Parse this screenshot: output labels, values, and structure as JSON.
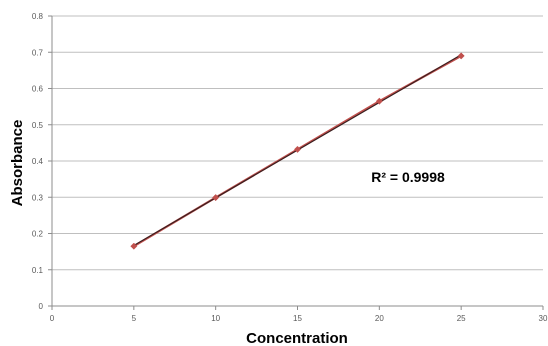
{
  "chart_data": {
    "type": "scatter",
    "title": "",
    "xlabel": "Concentration",
    "ylabel": "Absorbance",
    "xlim": [
      0,
      30
    ],
    "ylim": [
      0,
      0.8
    ],
    "x_ticks": [
      "0",
      "5",
      "10",
      "15",
      "20",
      "25",
      "30"
    ],
    "y_ticks": [
      "0",
      "0.1",
      "0.2",
      "0.3",
      "0.4",
      "0.5",
      "0.6",
      "0.7",
      "0.8"
    ],
    "grid": "horizontal",
    "legend": "none",
    "series": [
      {
        "x": [
          5,
          10,
          15,
          20,
          25
        ],
        "y": [
          0.165,
          0.299,
          0.432,
          0.565,
          0.69
        ],
        "marker": "diamond",
        "color": "#c0504d"
      }
    ],
    "trendline": {
      "type": "linear",
      "x_range": [
        5,
        25
      ],
      "y_at_range": [
        0.167,
        0.693
      ],
      "color": "#3a1f1f"
    },
    "annotations": [
      {
        "text": "R² = 0.9998"
      }
    ]
  }
}
